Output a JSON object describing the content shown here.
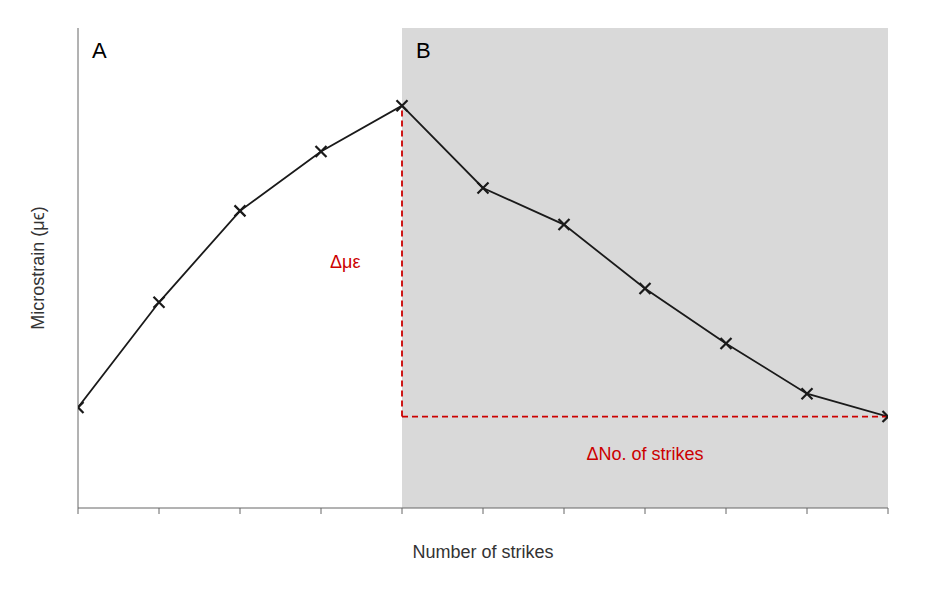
{
  "chart_data": {
    "type": "line",
    "x": [
      0,
      1,
      2,
      3,
      4,
      5,
      6,
      7,
      8,
      9,
      10
    ],
    "values": [
      0.22,
      0.45,
      0.65,
      0.78,
      0.88,
      0.7,
      0.62,
      0.48,
      0.36,
      0.25,
      0.2
    ],
    "color": "#1a1a1a",
    "marker": "x",
    "xlabel": "Number of strikes",
    "ylabel": "Microstrain (μϵ)",
    "xlim": [
      0,
      10
    ],
    "ylim": [
      0,
      1.05
    ],
    "xticks": [
      0,
      1,
      2,
      3,
      4,
      5,
      6,
      7,
      8,
      9,
      10
    ],
    "tick_labels": false,
    "grid": false,
    "regions": [
      {
        "label": "A",
        "x": [
          0,
          4
        ],
        "color": "#ffffff"
      },
      {
        "label": "B",
        "x": [
          4,
          10
        ],
        "color": "#d9d9d9"
      }
    ],
    "dashed_lines": [
      {
        "x": [
          4,
          4
        ],
        "y": [
          0.2,
          0.88
        ],
        "color": "#cc0000",
        "line_style": "dashed"
      },
      {
        "x": [
          4,
          10
        ],
        "y": [
          0.2,
          0.2
        ],
        "color": "#cc0000",
        "line_style": "dashed"
      }
    ],
    "annotations": [
      {
        "text": "Δμε",
        "x": 3.3,
        "y": 0.54,
        "color": "#cc0000"
      },
      {
        "text": "ΔNo. of strikes",
        "x": 7.0,
        "y": 0.12,
        "color": "#cc0000"
      }
    ]
  }
}
